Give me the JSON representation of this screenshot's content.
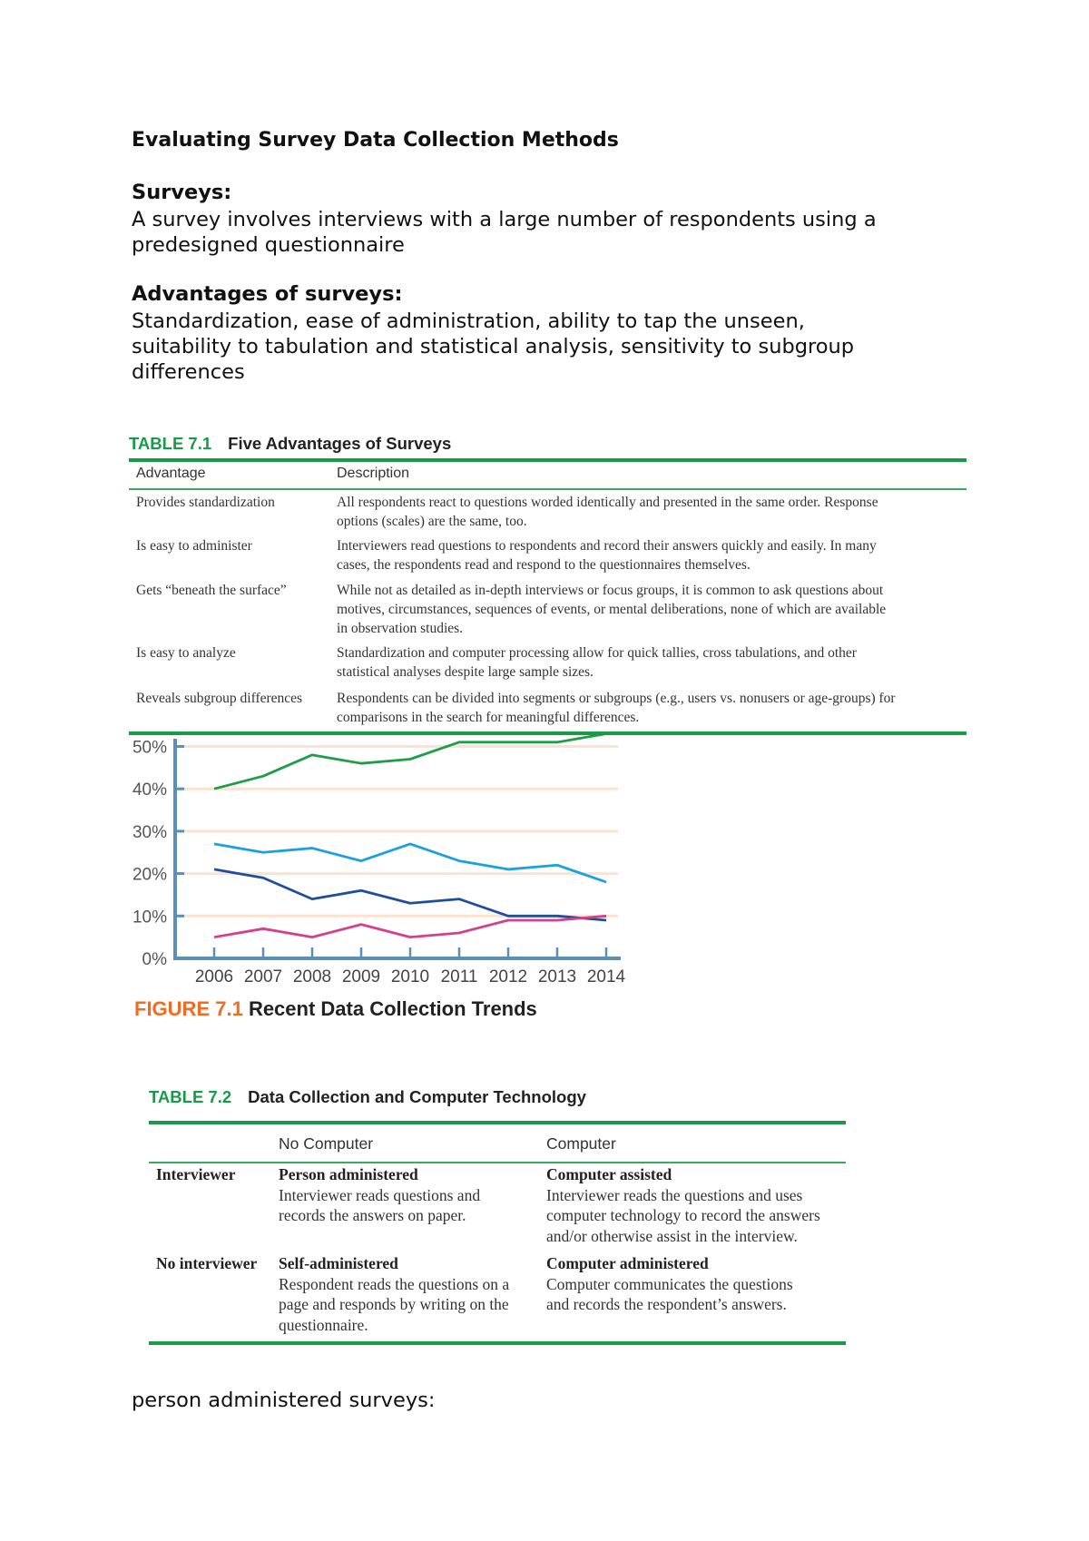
{
  "document": {
    "title": "Evaluating Survey Data Collection Methods",
    "surveys_heading": "Surveys:",
    "surveys_text": [
      "A survey involves interviews with a large number of respondents using a",
      "predesigned questionnaire"
    ],
    "advantages_heading": "Advantages of surveys:",
    "advantages_text": [
      "Standardization, ease of administration, ability to tap the unseen,",
      "suitability to tabulation and statistical analysis, sensitivity to subgroup",
      "differences"
    ],
    "footer_text": "person administered surveys:"
  },
  "table71": {
    "number": "TABLE 7.1",
    "caption": "Five Advantages of Surveys",
    "headers": [
      "Advantage",
      "Description"
    ],
    "rows": [
      {
        "advantage": "Provides standardization",
        "description": [
          "All respondents react to questions worded identically and presented in the same order. Response",
          "options (scales) are the same, too."
        ]
      },
      {
        "advantage": "Is easy to administer",
        "description": [
          "Interviewers read questions to respondents and record their answers quickly and easily. In many",
          "cases, the respondents read and respond to the questionnaires themselves."
        ]
      },
      {
        "advantage": "Gets “beneath the surface”",
        "description": [
          "While not as detailed as in-depth interviews or focus groups, it is common to ask questions about",
          "motives, circumstances, sequences of events, or mental deliberations, none of which are available",
          "in observation studies."
        ]
      },
      {
        "advantage": "Is easy to analyze",
        "description": [
          "Standardization and computer processing allow for quick tallies, cross tabulations, and other",
          "statistical analyses despite large sample sizes."
        ]
      },
      {
        "advantage": "Reveals subgroup differences",
        "description": [
          "Respondents can be divided into segments or subgroups (e.g., users vs. nonusers or age-groups) for",
          "comparisons in the search for meaningful differences."
        ]
      }
    ]
  },
  "figure71": {
    "number": "FIGURE 7.1",
    "caption": "Recent Data Collection Trends"
  },
  "chart_data": {
    "type": "line",
    "title": "",
    "xlabel": "",
    "ylabel": "",
    "x": [
      2006,
      2007,
      2008,
      2009,
      2010,
      2011,
      2012,
      2013,
      2014
    ],
    "x_tick_labels": [
      "2006",
      "2007",
      "2008",
      "2009",
      "2010",
      "2011",
      "2012",
      "2013",
      "2014"
    ],
    "y_tick_labels": [
      "0%",
      "10%",
      "20%",
      "30%",
      "40%",
      "50%"
    ],
    "y_ticks": [
      0,
      10,
      20,
      30,
      40,
      50
    ],
    "ylim": [
      0,
      52
    ],
    "grid": true,
    "legend": "none",
    "series": [
      {
        "color": "#1f9e4a",
        "values": [
          40,
          43,
          48,
          46,
          47,
          51,
          51,
          51,
          53
        ]
      },
      {
        "color": "#1ba1e2",
        "values": [
          27,
          25,
          26,
          23,
          27,
          23,
          21,
          22,
          18
        ]
      },
      {
        "color": "#1f4e9c",
        "values": [
          21,
          19,
          14,
          16,
          13,
          14,
          10,
          10,
          9
        ]
      },
      {
        "color": "#d63f8c",
        "values": [
          5,
          7,
          5,
          8,
          5,
          6,
          9,
          9,
          10
        ]
      }
    ],
    "colors": {
      "axis": "#5b8fb5",
      "grid": "#fde3cf"
    }
  },
  "table72": {
    "number": "TABLE 7.2",
    "caption": "Data Collection and Computer Technology",
    "headers": [
      "",
      "No Computer",
      "Computer"
    ],
    "rows": [
      {
        "label": "Interviewer",
        "cells": [
          {
            "title": "Person administered",
            "text": [
              "Interviewer reads questions and",
              "records the answers on paper."
            ]
          },
          {
            "title": "Computer assisted",
            "text": [
              "Interviewer reads the questions and uses",
              "computer technology to record the answers",
              "and/or otherwise assist in the interview."
            ]
          }
        ]
      },
      {
        "label": "No interviewer",
        "cells": [
          {
            "title": "Self-administered",
            "text": [
              "Respondent reads the questions on a",
              "page and responds by writing on the",
              "questionnaire."
            ]
          },
          {
            "title": "Computer administered",
            "text": [
              "Computer communicates the questions",
              "and records the respondent’s answers."
            ]
          }
        ]
      }
    ]
  },
  "colors": {
    "table_green": "#1a9a48",
    "figure_orange": "#f26b22"
  }
}
